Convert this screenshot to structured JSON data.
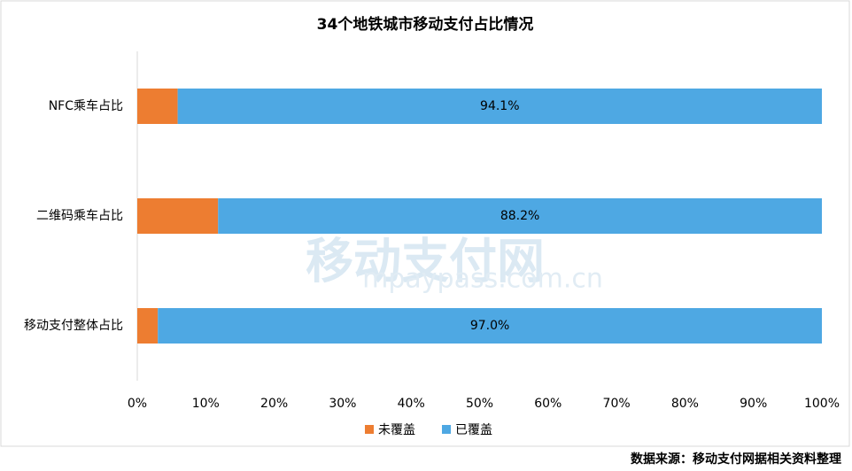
{
  "chart_data": {
    "type": "stacked-barh",
    "title": "34个地铁城市移动支付占比情况",
    "categories": [
      "NFC乘车占比",
      "二维码乘车占比",
      "移动支付整体占比"
    ],
    "series": [
      {
        "name": "未覆盖",
        "color": "#ed7d31",
        "values": [
          5.9,
          11.8,
          3.0
        ]
      },
      {
        "name": "已覆盖",
        "color": "#4ea8e3",
        "values": [
          94.1,
          88.2,
          97.0
        ],
        "value_labels": [
          "94.1%",
          "88.2%",
          "97.0%"
        ]
      }
    ],
    "xlim": [
      0,
      100
    ],
    "xticks": [
      {
        "value": 0,
        "label": "0%"
      },
      {
        "value": 10,
        "label": "10%"
      },
      {
        "value": 20,
        "label": "20%"
      },
      {
        "value": 30,
        "label": "30%"
      },
      {
        "value": 40,
        "label": "40%"
      },
      {
        "value": 50,
        "label": "50%"
      },
      {
        "value": 60,
        "label": "60%"
      },
      {
        "value": 70,
        "label": "70%"
      },
      {
        "value": 80,
        "label": "80%"
      },
      {
        "value": 90,
        "label": "90%"
      },
      {
        "value": 100,
        "label": "100%"
      }
    ],
    "legend": "bottom"
  },
  "watermark": {
    "name": "移动支付网",
    "url": "mpaypass.com.cn"
  },
  "source": "数据来源：移动支付网据相关资料整理"
}
